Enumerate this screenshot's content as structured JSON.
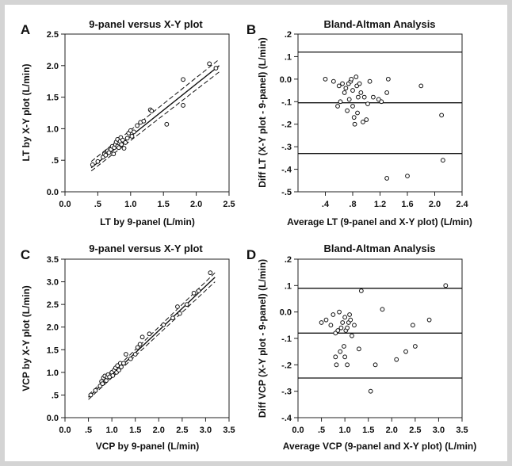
{
  "figure": {
    "panels": [
      "A",
      "B",
      "C",
      "D"
    ]
  },
  "chart_data": [
    {
      "id": "A",
      "type": "scatter",
      "title": "9-panel versus X-Y plot",
      "xlabel": "LT by 9-panel (L/min)",
      "ylabel": "LT by X-Y plot (L/min)",
      "xlim": [
        0.0,
        2.5
      ],
      "ylim": [
        0.0,
        2.5
      ],
      "xticks": [
        "0.0",
        ".5",
        "1.0",
        "1.5",
        "2.0",
        "2.5"
      ],
      "yticks": [
        "0.0",
        ".5",
        "1.0",
        "1.5",
        "2.0",
        "2.5"
      ],
      "xtick_values": [
        0.0,
        0.5,
        1.0,
        1.5,
        2.0,
        2.5
      ],
      "ytick_values": [
        0.0,
        0.5,
        1.0,
        1.5,
        2.0,
        2.5
      ],
      "points": [
        [
          0.42,
          0.43
        ],
        [
          0.5,
          0.48
        ],
        [
          0.58,
          0.55
        ],
        [
          0.6,
          0.6
        ],
        [
          0.62,
          0.58
        ],
        [
          0.65,
          0.65
        ],
        [
          0.67,
          0.62
        ],
        [
          0.7,
          0.67
        ],
        [
          0.72,
          0.72
        ],
        [
          0.74,
          0.6
        ],
        [
          0.75,
          0.7
        ],
        [
          0.77,
          0.75
        ],
        [
          0.78,
          0.79
        ],
        [
          0.8,
          0.72
        ],
        [
          0.8,
          0.83
        ],
        [
          0.82,
          0.7
        ],
        [
          0.84,
          0.8
        ],
        [
          0.85,
          0.86
        ],
        [
          0.86,
          0.75
        ],
        [
          0.88,
          0.82
        ],
        [
          0.9,
          0.69
        ],
        [
          0.92,
          0.78
        ],
        [
          0.95,
          0.85
        ],
        [
          0.97,
          0.93
        ],
        [
          1.0,
          0.97
        ],
        [
          1.02,
          0.88
        ],
        [
          1.05,
          0.95
        ],
        [
          1.1,
          1.05
        ],
        [
          1.15,
          1.1
        ],
        [
          1.2,
          1.12
        ],
        [
          1.3,
          1.3
        ],
        [
          1.32,
          1.28
        ],
        [
          1.55,
          1.07
        ],
        [
          1.8,
          1.37
        ],
        [
          1.8,
          1.78
        ],
        [
          2.2,
          2.03
        ],
        [
          2.3,
          1.96
        ]
      ],
      "regression_line": [
        [
          0.4,
          0.38
        ],
        [
          2.35,
          2.0
        ]
      ],
      "confidence_band_upper": [
        [
          0.4,
          0.48
        ],
        [
          2.35,
          2.1
        ]
      ],
      "confidence_band_lower": [
        [
          0.4,
          0.33
        ],
        [
          2.35,
          1.9
        ]
      ]
    },
    {
      "id": "B",
      "type": "scatter",
      "title": "Bland-Altman Analysis",
      "xlabel": "Average LT (9-panel and X-Y plot) (L/min)",
      "ylabel": "Diff LT (X-Y plot - 9-panel) (L/min)",
      "xlim": [
        0.0,
        2.4
      ],
      "ylim": [
        -0.5,
        0.2
      ],
      "xticks": [
        ".4",
        ".8",
        "1.2",
        "1.6",
        "2.0",
        "2.4"
      ],
      "yticks": [
        "-.5",
        "-.4",
        "-.3",
        "-.2",
        "-.1",
        "0.0",
        ".1",
        ".2"
      ],
      "xtick_values": [
        0.4,
        0.8,
        1.2,
        1.6,
        2.0,
        2.4
      ],
      "ytick_values": [
        -0.5,
        -0.4,
        -0.3,
        -0.2,
        -0.1,
        0.0,
        0.1,
        0.2
      ],
      "hlines": [
        0.12,
        -0.105,
        -0.33
      ],
      "points": [
        [
          0.4,
          0.0
        ],
        [
          0.52,
          -0.01
        ],
        [
          0.58,
          -0.12
        ],
        [
          0.6,
          -0.03
        ],
        [
          0.62,
          -0.1
        ],
        [
          0.65,
          -0.02
        ],
        [
          0.68,
          -0.06
        ],
        [
          0.7,
          -0.04
        ],
        [
          0.72,
          -0.14
        ],
        [
          0.74,
          -0.02
        ],
        [
          0.75,
          -0.09
        ],
        [
          0.77,
          -0.01
        ],
        [
          0.78,
          0.0
        ],
        [
          0.8,
          -0.05
        ],
        [
          0.8,
          -0.12
        ],
        [
          0.82,
          -0.17
        ],
        [
          0.83,
          -0.2
        ],
        [
          0.85,
          0.01
        ],
        [
          0.86,
          -0.03
        ],
        [
          0.87,
          -0.15
        ],
        [
          0.88,
          -0.08
        ],
        [
          0.9,
          -0.02
        ],
        [
          0.92,
          -0.06
        ],
        [
          0.95,
          -0.19
        ],
        [
          0.97,
          -0.08
        ],
        [
          1.0,
          -0.18
        ],
        [
          1.02,
          -0.11
        ],
        [
          1.05,
          -0.01
        ],
        [
          1.1,
          -0.08
        ],
        [
          1.18,
          -0.09
        ],
        [
          1.22,
          -0.1
        ],
        [
          1.3,
          -0.06
        ],
        [
          1.32,
          0.0
        ],
        [
          1.3,
          -0.44
        ],
        [
          1.6,
          -0.43
        ],
        [
          1.8,
          -0.03
        ],
        [
          2.1,
          -0.16
        ],
        [
          2.12,
          -0.36
        ]
      ]
    },
    {
      "id": "C",
      "type": "scatter",
      "title": "9-panel versus X-Y plot",
      "xlabel": "VCP by 9-panel (L/min)",
      "ylabel": "VCP by X-Y plot (L/min)",
      "xlim": [
        0.0,
        3.5
      ],
      "ylim": [
        0.0,
        3.5
      ],
      "xticks": [
        "0.0",
        ".5",
        "1.0",
        "1.5",
        "2.0",
        "2.5",
        "3.0",
        "3.5"
      ],
      "yticks": [
        "0.0",
        ".5",
        "1.0",
        "1.5",
        "2.0",
        "2.5",
        "3.0",
        "3.5"
      ],
      "xtick_values": [
        0.0,
        0.5,
        1.0,
        1.5,
        2.0,
        2.5,
        3.0,
        3.5
      ],
      "ytick_values": [
        0.0,
        0.5,
        1.0,
        1.5,
        2.0,
        2.5,
        3.0,
        3.5
      ],
      "points": [
        [
          0.55,
          0.5
        ],
        [
          0.65,
          0.6
        ],
        [
          0.75,
          0.7
        ],
        [
          0.78,
          0.8
        ],
        [
          0.8,
          0.75
        ],
        [
          0.82,
          0.88
        ],
        [
          0.85,
          0.92
        ],
        [
          0.88,
          0.82
        ],
        [
          0.9,
          0.9
        ],
        [
          0.92,
          0.95
        ],
        [
          0.95,
          0.9
        ],
        [
          1.0,
          1.0
        ],
        [
          1.02,
          0.93
        ],
        [
          1.05,
          1.05
        ],
        [
          1.08,
          1.1
        ],
        [
          1.1,
          1.0
        ],
        [
          1.12,
          1.15
        ],
        [
          1.15,
          1.05
        ],
        [
          1.18,
          1.2
        ],
        [
          1.2,
          1.12
        ],
        [
          1.25,
          1.2
        ],
        [
          1.3,
          1.4
        ],
        [
          1.4,
          1.3
        ],
        [
          1.5,
          1.4
        ],
        [
          1.55,
          1.55
        ],
        [
          1.6,
          1.62
        ],
        [
          1.65,
          1.78
        ],
        [
          1.8,
          1.85
        ],
        [
          2.1,
          2.05
        ],
        [
          2.3,
          2.2
        ],
        [
          2.4,
          2.45
        ],
        [
          2.45,
          2.3
        ],
        [
          2.6,
          2.5
        ],
        [
          2.75,
          2.75
        ],
        [
          2.85,
          2.8
        ],
        [
          3.1,
          3.2
        ]
      ],
      "regression_line": [
        [
          0.5,
          0.45
        ],
        [
          3.2,
          3.1
        ]
      ],
      "confidence_band_upper": [
        [
          0.5,
          0.5
        ],
        [
          3.2,
          3.2
        ]
      ],
      "confidence_band_lower": [
        [
          0.5,
          0.4
        ],
        [
          3.2,
          3.0
        ]
      ]
    },
    {
      "id": "D",
      "type": "scatter",
      "title": "Bland-Altman Analysis",
      "xlabel": "Average VCP (9-panel and X-Y plot) (L/min)",
      "ylabel": "Diff VCP (X-Y plot - 9-panel) (L/min)",
      "xlim": [
        0.0,
        3.5
      ],
      "ylim": [
        -0.4,
        0.2
      ],
      "xticks": [
        "0.0",
        ".5",
        "1.0",
        "1.5",
        "2.0",
        "2.5",
        "3.0",
        "3.5"
      ],
      "yticks": [
        "-.4",
        "-.3",
        "-.2",
        "-.1",
        "0.0",
        ".1",
        ".2"
      ],
      "xtick_values": [
        0.0,
        0.5,
        1.0,
        1.5,
        2.0,
        2.5,
        3.0,
        3.5
      ],
      "ytick_values": [
        -0.4,
        -0.3,
        -0.2,
        -0.1,
        0.0,
        0.1,
        0.2
      ],
      "hlines": [
        0.09,
        -0.08,
        -0.25
      ],
      "points": [
        [
          0.5,
          -0.04
        ],
        [
          0.6,
          -0.03
        ],
        [
          0.7,
          -0.05
        ],
        [
          0.75,
          -0.01
        ],
        [
          0.8,
          -0.08
        ],
        [
          0.8,
          -0.17
        ],
        [
          0.82,
          -0.2
        ],
        [
          0.85,
          -0.07
        ],
        [
          0.88,
          0.0
        ],
        [
          0.9,
          -0.15
        ],
        [
          0.92,
          -0.06
        ],
        [
          0.95,
          -0.04
        ],
        [
          0.98,
          -0.13
        ],
        [
          1.0,
          -0.02
        ],
        [
          1.0,
          -0.17
        ],
        [
          1.02,
          -0.07
        ],
        [
          1.05,
          -0.06
        ],
        [
          1.05,
          -0.2
        ],
        [
          1.08,
          -0.04
        ],
        [
          1.1,
          -0.01
        ],
        [
          1.12,
          -0.03
        ],
        [
          1.15,
          -0.09
        ],
        [
          1.2,
          -0.05
        ],
        [
          1.3,
          -0.14
        ],
        [
          1.35,
          0.08
        ],
        [
          1.55,
          -0.3
        ],
        [
          1.65,
          -0.2
        ],
        [
          1.8,
          0.01
        ],
        [
          2.1,
          -0.18
        ],
        [
          2.3,
          -0.15
        ],
        [
          2.45,
          -0.05
        ],
        [
          2.5,
          -0.13
        ],
        [
          2.8,
          -0.03
        ],
        [
          3.15,
          0.1
        ]
      ]
    }
  ]
}
